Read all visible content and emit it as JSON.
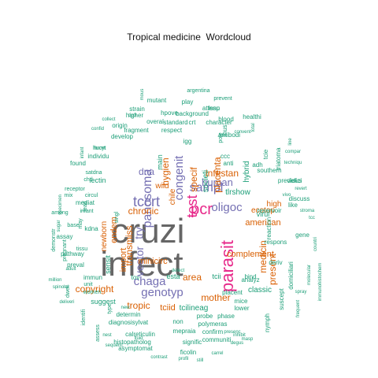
{
  "title": "Tropical medicine  Wordcloud",
  "palette": {
    "gray": "#666666",
    "pink": "#e7298a",
    "purple": "#7570b3",
    "orange": "#d95f02",
    "green": "#1b9e77"
  },
  "words": [
    {
      "text": "cruzi",
      "color": "gray"
    },
    {
      "text": "infect",
      "color": "gray"
    },
    {
      "text": "parasit",
      "color": "pink"
    },
    {
      "text": "test",
      "color": "pink"
    },
    {
      "text": "pcr",
      "color": "pink"
    },
    {
      "text": "panosoma",
      "color": "purple"
    },
    {
      "text": "tccrt",
      "color": "purple"
    },
    {
      "text": "congenit",
      "color": "purple"
    },
    {
      "text": "sampl",
      "color": "purple"
    },
    {
      "text": "chaga",
      "color": "purple"
    },
    {
      "text": "genotyp",
      "color": "purple"
    },
    {
      "text": "oligoc",
      "color": "purple"
    },
    {
      "text": "human",
      "color": "purple"
    },
    {
      "text": "vector",
      "color": "purple"
    },
    {
      "text": "try",
      "color": "purple"
    },
    {
      "text": "dna",
      "color": "purple"
    },
    {
      "text": "medicin",
      "color": "orange"
    },
    {
      "text": "copyright",
      "color": "orange"
    },
    {
      "text": "transmiss",
      "color": "orange"
    },
    {
      "text": "chronic",
      "color": "orange"
    },
    {
      "text": "placenta",
      "color": "orange"
    },
    {
      "text": "infestan",
      "color": "orange"
    },
    {
      "text": "present",
      "color": "orange"
    },
    {
      "text": "specif",
      "color": "orange"
    },
    {
      "text": "hygien",
      "color": "orange"
    },
    {
      "text": "mother",
      "color": "orange"
    },
    {
      "text": "area",
      "color": "orange"
    },
    {
      "text": "tropic",
      "color": "orange"
    },
    {
      "text": "complement",
      "color": "orange"
    },
    {
      "text": "american",
      "color": "orange"
    },
    {
      "text": "tciid",
      "color": "orange"
    },
    {
      "text": "minicirc",
      "color": "orange"
    },
    {
      "text": "import",
      "color": "orange"
    },
    {
      "text": "endem",
      "color": "orange"
    },
    {
      "text": "newborn",
      "color": "orange"
    },
    {
      "text": "wild",
      "color": "orange"
    },
    {
      "text": "chile",
      "color": "orange"
    },
    {
      "text": "ecotop",
      "color": "orange"
    },
    {
      "text": "high",
      "color": "orange"
    },
    {
      "text": "tcilineag",
      "color": "green"
    },
    {
      "text": "tlrshow",
      "color": "green"
    },
    {
      "text": "societi",
      "color": "green"
    },
    {
      "text": "main",
      "color": "green"
    },
    {
      "text": "hybrid",
      "color": "green"
    },
    {
      "text": "virul",
      "color": "green"
    },
    {
      "text": "suggest",
      "color": "green"
    },
    {
      "text": "sensit",
      "color": "green"
    },
    {
      "text": "classic",
      "color": "green"
    },
    {
      "text": "esta",
      "color": "green"
    },
    {
      "text": "tcii",
      "color": "green"
    },
    {
      "text": "immun",
      "color": "green"
    },
    {
      "text": "igg",
      "color": "green"
    },
    {
      "text": "develop",
      "color": "green"
    },
    {
      "text": "blood",
      "color": "green"
    },
    {
      "text": "antibodi",
      "color": "green"
    },
    {
      "text": "lectin",
      "color": "green"
    },
    {
      "text": "kdna",
      "color": "green"
    },
    {
      "text": "assay",
      "color": "green"
    },
    {
      "text": "reservoir",
      "color": "green"
    },
    {
      "text": "reaction",
      "color": "green"
    },
    {
      "text": "respons",
      "color": "green"
    },
    {
      "text": "previous",
      "color": "green"
    },
    {
      "text": "southern",
      "color": "green"
    },
    {
      "text": "analyz",
      "color": "green"
    },
    {
      "text": "bind",
      "color": "green"
    },
    {
      "text": "mice",
      "color": "green"
    },
    {
      "text": "lower",
      "color": "green"
    },
    {
      "text": "placent",
      "color": "green"
    },
    {
      "text": "probe",
      "color": "green"
    },
    {
      "text": "polymeras",
      "color": "green"
    },
    {
      "text": "mepraia",
      "color": "green"
    },
    {
      "text": "confirm",
      "color": "green"
    },
    {
      "text": "communiti",
      "color": "green"
    },
    {
      "text": "signific",
      "color": "green"
    },
    {
      "text": "ficolin",
      "color": "green"
    },
    {
      "text": "asymptomat",
      "color": "green"
    },
    {
      "text": "calreticulin",
      "color": "green"
    },
    {
      "text": "histopatholog",
      "color": "green"
    },
    {
      "text": "diagnosisylvat",
      "color": "green"
    },
    {
      "text": "determin",
      "color": "green"
    },
    {
      "text": "non",
      "color": "green"
    },
    {
      "text": "tov",
      "color": "green"
    },
    {
      "text": "preval",
      "color": "green"
    },
    {
      "text": "pathway",
      "color": "green"
    },
    {
      "text": "mediat",
      "color": "green"
    },
    {
      "text": "found",
      "color": "green"
    },
    {
      "text": "individu",
      "color": "green"
    },
    {
      "text": "hpove",
      "color": "green"
    },
    {
      "text": "overal",
      "color": "green"
    },
    {
      "text": "standard",
      "color": "green"
    },
    {
      "text": "background",
      "color": "green"
    },
    {
      "text": "respect",
      "color": "green"
    },
    {
      "text": "fragment",
      "color": "green"
    },
    {
      "text": "origin",
      "color": "green"
    },
    {
      "text": "higher",
      "color": "green"
    },
    {
      "text": "mutant",
      "color": "green"
    },
    {
      "text": "play",
      "color": "green"
    },
    {
      "text": "lssp",
      "color": "green"
    },
    {
      "text": "strain",
      "color": "green"
    },
    {
      "text": "character",
      "color": "green"
    },
    {
      "text": "healthi",
      "color": "green"
    },
    {
      "text": "attenu",
      "color": "green"
    },
    {
      "text": "prevent",
      "color": "green"
    },
    {
      "text": "argentina",
      "color": "green"
    },
    {
      "text": "deriv",
      "color": "green"
    },
    {
      "text": "suscept",
      "color": "green"
    },
    {
      "text": "nymph",
      "color": "green"
    },
    {
      "text": "phase",
      "color": "green"
    },
    {
      "text": "domiciliari",
      "color": "green"
    },
    {
      "text": "defici",
      "color": "green"
    },
    {
      "text": "discuss",
      "color": "green"
    },
    {
      "text": "like",
      "color": "green"
    },
    {
      "text": "gene",
      "color": "green"
    },
    {
      "text": "adh",
      "color": "green"
    },
    {
      "text": "anti",
      "color": "green"
    },
    {
      "text": "ccc",
      "color": "green"
    },
    {
      "text": "tcie",
      "color": "green"
    },
    {
      "text": "triatoma",
      "color": "green"
    },
    {
      "text": "thus",
      "color": "green"
    },
    {
      "text": "pole",
      "color": "green"
    },
    {
      "text": "crt",
      "color": "green"
    },
    {
      "text": "hrcyt",
      "color": "green"
    },
    {
      "text": "huort",
      "color": "green"
    },
    {
      "text": "satdna",
      "color": "green"
    },
    {
      "text": "chd",
      "color": "green"
    },
    {
      "text": "receptor",
      "color": "green"
    },
    {
      "text": "circul",
      "color": "green"
    },
    {
      "text": "infant",
      "color": "green"
    },
    {
      "text": "lead",
      "color": "green"
    },
    {
      "text": "mix",
      "color": "green"
    },
    {
      "text": "among",
      "color": "green"
    },
    {
      "text": "base",
      "color": "green"
    },
    {
      "text": "pregnant",
      "color": "green"
    },
    {
      "text": "demonstr",
      "color": "green"
    },
    {
      "text": "tissu",
      "color": "green"
    },
    {
      "text": "unit",
      "color": "green"
    },
    {
      "text": "women",
      "color": "green"
    },
    {
      "text": "identifi",
      "color": "green"
    },
    {
      "text": "assess",
      "color": "green"
    },
    {
      "text": "dwell",
      "color": "green"
    },
    {
      "text": "type",
      "color": "green"
    },
    {
      "text": "singl",
      "color": "green"
    },
    {
      "text": "may",
      "color": "green"
    },
    {
      "text": "stroma",
      "color": "green"
    },
    {
      "text": "revert",
      "color": "green"
    },
    {
      "text": "vivo",
      "color": "green"
    },
    {
      "text": "convent",
      "color": "green"
    },
    {
      "text": "total",
      "color": "green"
    },
    {
      "text": "contrast",
      "color": "green"
    },
    {
      "text": "profil",
      "color": "green"
    },
    {
      "text": "still",
      "color": "green"
    },
    {
      "text": "carrel",
      "color": "green"
    },
    {
      "text": "masp",
      "color": "green"
    },
    {
      "text": "presenc",
      "color": "green"
    },
    {
      "text": "degus",
      "color": "green"
    },
    {
      "text": "nest",
      "color": "green"
    },
    {
      "text": "sequenc",
      "color": "green"
    },
    {
      "text": "deliveri",
      "color": "green"
    },
    {
      "text": "spinolai",
      "color": "green"
    },
    {
      "text": "million",
      "color": "green"
    },
    {
      "text": "detect",
      "color": "green"
    },
    {
      "text": "cycl",
      "color": "green"
    },
    {
      "text": "collect",
      "color": "green"
    },
    {
      "text": "confid",
      "color": "green"
    },
    {
      "text": "mous",
      "color": "green"
    },
    {
      "text": "techniqu",
      "color": "green"
    },
    {
      "text": "line",
      "color": "green"
    },
    {
      "text": "compar",
      "color": "green"
    },
    {
      "text": "spray",
      "color": "green"
    },
    {
      "text": "countri",
      "color": "green"
    },
    {
      "text": "frequent",
      "color": "green"
    },
    {
      "text": "immunohistochem",
      "color": "green"
    },
    {
      "text": "molecular",
      "color": "green"
    },
    {
      "text": "tcc",
      "color": "green"
    },
    {
      "text": "specimen",
      "color": "green"
    },
    {
      "text": "fluid",
      "color": "green"
    },
    {
      "text": "inhibit",
      "color": "green"
    },
    {
      "text": "adult",
      "color": "green"
    },
    {
      "text": "sugar",
      "color": "green"
    },
    {
      "text": "new",
      "color": "green"
    },
    {
      "text": "infant2",
      "color": "green"
    }
  ]
}
